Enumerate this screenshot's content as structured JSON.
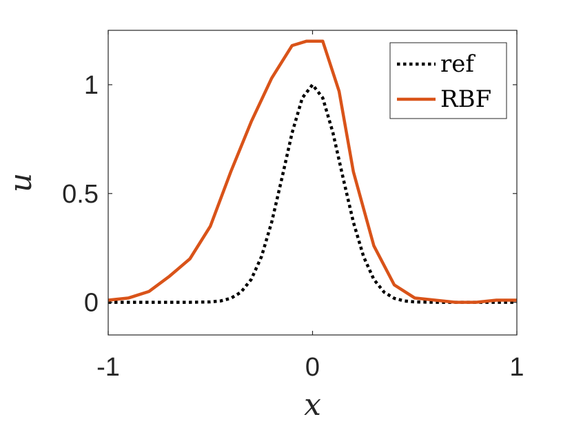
{
  "chart_data": {
    "type": "line",
    "xlabel": "x",
    "ylabel": "u",
    "xlim": [
      -1,
      1
    ],
    "ylim": [
      -0.15,
      1.25
    ],
    "xticks": [
      -1,
      0,
      1
    ],
    "xtick_labels": [
      "-1",
      "0",
      "1"
    ],
    "yticks": [
      0,
      0.5,
      1
    ],
    "ytick_labels": [
      "0",
      "0.5",
      "1"
    ],
    "grid": false,
    "legend_position": "top-right",
    "series": [
      {
        "name": "ref",
        "color": "#000000",
        "style": "dotted",
        "function": "exp(-25 x^2)",
        "x": [
          -1,
          -0.6,
          -0.5,
          -0.45,
          -0.4,
          -0.35,
          -0.3,
          -0.25,
          -0.2,
          -0.15,
          -0.1,
          -0.05,
          0,
          0.05,
          0.1,
          0.15,
          0.2,
          0.25,
          0.3,
          0.35,
          0.4,
          0.45,
          0.5,
          0.6,
          1
        ],
        "y": [
          0.0,
          0.0001,
          0.0019,
          0.0063,
          0.0183,
          0.0468,
          0.1054,
          0.2096,
          0.3679,
          0.5698,
          0.7788,
          0.9394,
          1.0,
          0.9394,
          0.7788,
          0.5698,
          0.3679,
          0.2096,
          0.1054,
          0.0468,
          0.0183,
          0.0063,
          0.0019,
          0.0001,
          0.0
        ]
      },
      {
        "name": "RBF",
        "color": "#D95319",
        "style": "solid",
        "x": [
          -1,
          -0.9,
          -0.8,
          -0.7,
          -0.6,
          -0.5,
          -0.4,
          -0.3,
          -0.2,
          -0.1,
          -0.03,
          0.05,
          0.13,
          0.2,
          0.3,
          0.4,
          0.5,
          0.6,
          0.7,
          0.8,
          0.9,
          1
        ],
        "y": [
          0.01,
          0.02,
          0.05,
          0.12,
          0.2,
          0.35,
          0.6,
          0.83,
          1.03,
          1.18,
          1.2,
          1.2,
          0.97,
          0.6,
          0.26,
          0.08,
          0.02,
          0.01,
          0.0,
          0.0,
          0.01,
          0.01
        ]
      }
    ]
  }
}
